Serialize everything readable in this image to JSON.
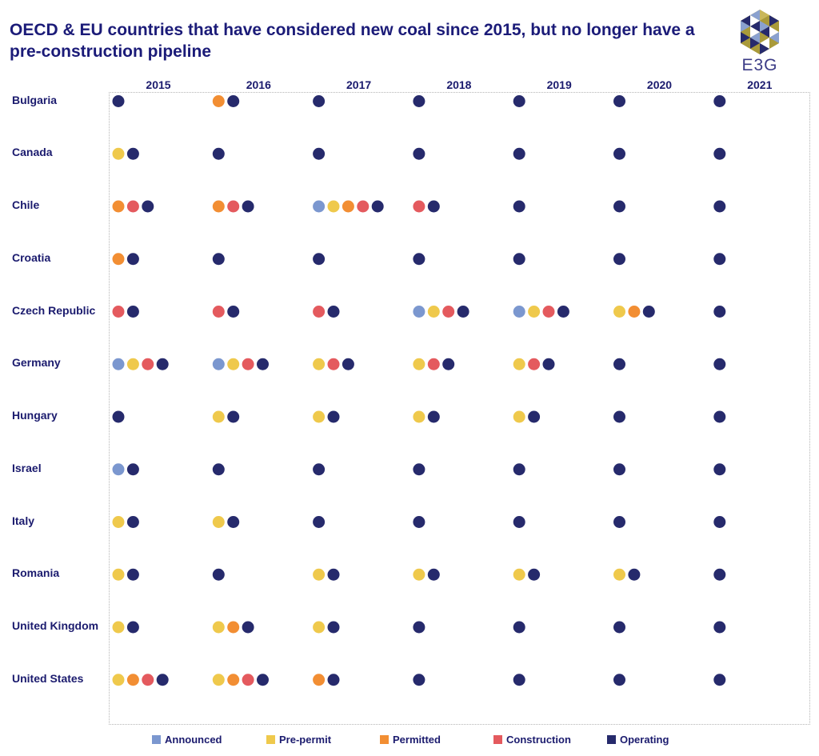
{
  "title": "OECD & EU countries that have considered new coal since 2015, but no longer have a pre-construction pipeline",
  "logo": {
    "text": "E3G"
  },
  "chart_data": {
    "type": "scatter",
    "title": "OECD & EU countries that have considered new coal since 2015, but no longer have a pre-construction pipeline",
    "years": [
      "2015",
      "2016",
      "2017",
      "2018",
      "2019",
      "2020",
      "2021"
    ],
    "legend_position": "bottom",
    "statuses": [
      {
        "key": "announced",
        "label": "Announced",
        "color": "#7b97cf"
      },
      {
        "key": "pre_permit",
        "label": "Pre-permit",
        "color": "#efc94c"
      },
      {
        "key": "permitted",
        "label": "Permitted",
        "color": "#f28e33"
      },
      {
        "key": "construction",
        "label": "Construction",
        "color": "#e45a5e"
      },
      {
        "key": "operating",
        "label": "Operating",
        "color": "#262a6c"
      }
    ],
    "countries": [
      {
        "name": "Bulgaria",
        "years": [
          [
            "operating"
          ],
          [
            "permitted",
            "operating"
          ],
          [
            "operating"
          ],
          [
            "operating"
          ],
          [
            "operating"
          ],
          [
            "operating"
          ],
          [
            "operating"
          ]
        ]
      },
      {
        "name": "Canada",
        "years": [
          [
            "pre_permit",
            "operating"
          ],
          [
            "operating"
          ],
          [
            "operating"
          ],
          [
            "operating"
          ],
          [
            "operating"
          ],
          [
            "operating"
          ],
          [
            "operating"
          ]
        ]
      },
      {
        "name": "Chile",
        "years": [
          [
            "permitted",
            "construction",
            "operating"
          ],
          [
            "permitted",
            "construction",
            "operating"
          ],
          [
            "announced",
            "pre_permit",
            "permitted",
            "construction",
            "operating"
          ],
          [
            "construction",
            "operating"
          ],
          [
            "operating"
          ],
          [
            "operating"
          ],
          [
            "operating"
          ]
        ]
      },
      {
        "name": "Croatia",
        "years": [
          [
            "permitted",
            "operating"
          ],
          [
            "operating"
          ],
          [
            "operating"
          ],
          [
            "operating"
          ],
          [
            "operating"
          ],
          [
            "operating"
          ],
          [
            "operating"
          ]
        ]
      },
      {
        "name": "Czech Republic",
        "years": [
          [
            "construction",
            "operating"
          ],
          [
            "construction",
            "operating"
          ],
          [
            "construction",
            "operating"
          ],
          [
            "announced",
            "pre_permit",
            "construction",
            "operating"
          ],
          [
            "announced",
            "pre_permit",
            "construction",
            "operating"
          ],
          [
            "pre_permit",
            "permitted",
            "operating"
          ],
          [
            "operating"
          ]
        ]
      },
      {
        "name": "Germany",
        "years": [
          [
            "announced",
            "pre_permit",
            "construction",
            "operating"
          ],
          [
            "announced",
            "pre_permit",
            "construction",
            "operating"
          ],
          [
            "pre_permit",
            "construction",
            "operating"
          ],
          [
            "pre_permit",
            "construction",
            "operating"
          ],
          [
            "pre_permit",
            "construction",
            "operating"
          ],
          [
            "operating"
          ],
          [
            "operating"
          ]
        ]
      },
      {
        "name": "Hungary",
        "years": [
          [
            "operating"
          ],
          [
            "pre_permit",
            "operating"
          ],
          [
            "pre_permit",
            "operating"
          ],
          [
            "pre_permit",
            "operating"
          ],
          [
            "pre_permit",
            "operating"
          ],
          [
            "operating"
          ],
          [
            "operating"
          ]
        ]
      },
      {
        "name": "Israel",
        "years": [
          [
            "announced",
            "operating"
          ],
          [
            "operating"
          ],
          [
            "operating"
          ],
          [
            "operating"
          ],
          [
            "operating"
          ],
          [
            "operating"
          ],
          [
            "operating"
          ]
        ]
      },
      {
        "name": "Italy",
        "years": [
          [
            "pre_permit",
            "operating"
          ],
          [
            "pre_permit",
            "operating"
          ],
          [
            "operating"
          ],
          [
            "operating"
          ],
          [
            "operating"
          ],
          [
            "operating"
          ],
          [
            "operating"
          ]
        ]
      },
      {
        "name": "Romania",
        "years": [
          [
            "pre_permit",
            "operating"
          ],
          [
            "operating"
          ],
          [
            "pre_permit",
            "operating"
          ],
          [
            "pre_permit",
            "operating"
          ],
          [
            "pre_permit",
            "operating"
          ],
          [
            "pre_permit",
            "operating"
          ],
          [
            "operating"
          ]
        ]
      },
      {
        "name": "United Kingdom",
        "years": [
          [
            "pre_permit",
            "operating"
          ],
          [
            "pre_permit",
            "permitted",
            "operating"
          ],
          [
            "pre_permit",
            "operating"
          ],
          [
            "operating"
          ],
          [
            "operating"
          ],
          [
            "operating"
          ],
          [
            "operating"
          ]
        ]
      },
      {
        "name": "United States",
        "years": [
          [
            "pre_permit",
            "permitted",
            "construction",
            "operating"
          ],
          [
            "pre_permit",
            "permitted",
            "construction",
            "operating"
          ],
          [
            "permitted",
            "operating"
          ],
          [
            "operating"
          ],
          [
            "operating"
          ],
          [
            "operating"
          ],
          [
            "operating"
          ]
        ]
      }
    ]
  }
}
